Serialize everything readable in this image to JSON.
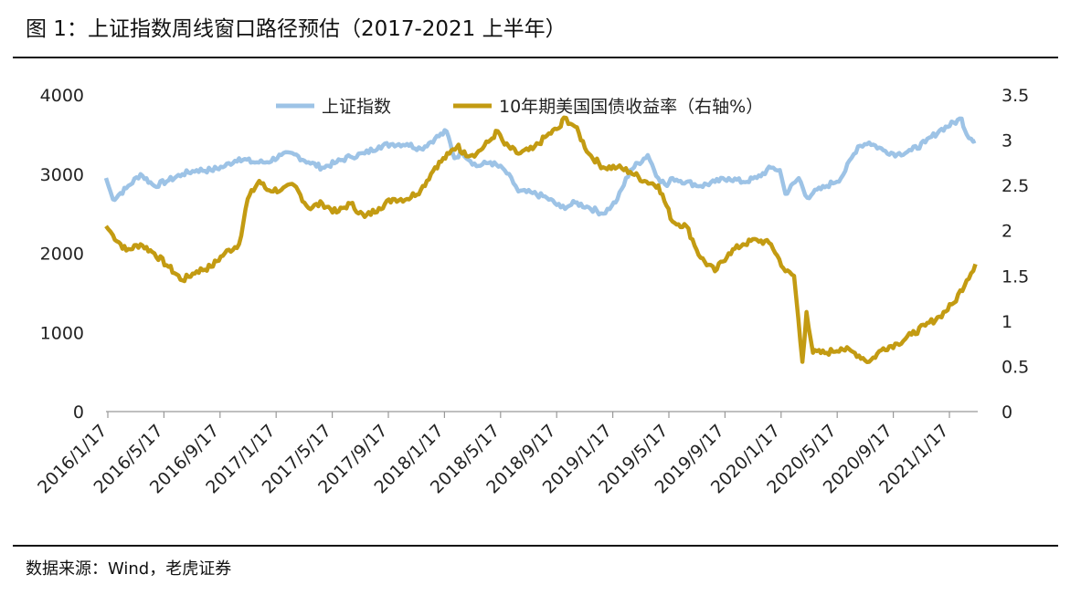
{
  "title": "图 1：上证指数周线窗口路径预估（2017-2021 上半年）",
  "source": "数据来源：Wind，老虎证券",
  "chart_data": {
    "type": "line",
    "legend": {
      "placement": "top-center",
      "entries": [
        "上证指数",
        "10年期美国国债收益率（右轴%）"
      ]
    },
    "grid": false,
    "x_tick_labels": [
      "2016/1/17",
      "2016/5/17",
      "2016/9/17",
      "2017/1/17",
      "2017/5/17",
      "2017/9/17",
      "2018/1/17",
      "2018/5/17",
      "2018/9/17",
      "2019/1/17",
      "2019/5/17",
      "2019/9/17",
      "2020/1/17",
      "2020/5/17",
      "2020/9/17",
      "2021/1/17"
    ],
    "y_left": {
      "ticks": [
        "0",
        "1000",
        "2000",
        "3000",
        "4000"
      ],
      "range": [
        0,
        4000
      ]
    },
    "y_right": {
      "ticks": [
        "0",
        "0.5",
        "1",
        "1.5",
        "2",
        "2.5",
        "3",
        "3.5"
      ],
      "range": [
        0,
        3.5
      ]
    },
    "colors": {
      "sse": "#9dc3e6",
      "ust": "#c39b12"
    },
    "series": [
      {
        "name": "上证指数",
        "axis": "left",
        "x": [
          "2016-01-17",
          "2016-02-01",
          "2016-03-01",
          "2016-04-01",
          "2016-05-01",
          "2016-06-01",
          "2016-07-01",
          "2016-08-01",
          "2016-09-01",
          "2016-10-01",
          "2016-11-01",
          "2016-12-01",
          "2017-01-01",
          "2017-02-01",
          "2017-03-01",
          "2017-04-01",
          "2017-05-01",
          "2017-06-01",
          "2017-07-01",
          "2017-08-01",
          "2017-09-01",
          "2017-10-01",
          "2017-11-01",
          "2017-12-01",
          "2018-01-01",
          "2018-01-26",
          "2018-02-12",
          "2018-03-01",
          "2018-04-01",
          "2018-05-01",
          "2018-06-01",
          "2018-06-25",
          "2018-07-01",
          "2018-08-01",
          "2018-09-01",
          "2018-10-01",
          "2018-10-20",
          "2018-11-01",
          "2018-12-01",
          "2019-01-01",
          "2019-01-20",
          "2019-02-01",
          "2019-03-01",
          "2019-04-08",
          "2019-05-01",
          "2019-05-20",
          "2019-06-01",
          "2019-07-01",
          "2019-08-01",
          "2019-09-01",
          "2019-10-01",
          "2019-11-01",
          "2019-12-01",
          "2020-01-01",
          "2020-01-20",
          "2020-02-01",
          "2020-03-01",
          "2020-03-20",
          "2020-04-01",
          "2020-05-01",
          "2020-06-01",
          "2020-07-08",
          "2020-08-01",
          "2020-09-01",
          "2020-10-01",
          "2020-11-01",
          "2020-12-01",
          "2021-01-01",
          "2021-02-18",
          "2021-03-01",
          "2021-03-20"
        ],
        "y": [
          2950,
          2680,
          2820,
          3000,
          2850,
          2920,
          3000,
          3050,
          3050,
          3100,
          3200,
          3150,
          3150,
          3240,
          3250,
          3150,
          3080,
          3150,
          3220,
          3260,
          3350,
          3380,
          3380,
          3320,
          3450,
          3540,
          3200,
          3280,
          3100,
          3150,
          3050,
          2850,
          2780,
          2760,
          2700,
          2580,
          2600,
          2640,
          2580,
          2500,
          2600,
          2680,
          3050,
          3240,
          2950,
          2850,
          2950,
          2900,
          2850,
          2900,
          2950,
          2900,
          2950,
          3080,
          3050,
          2750,
          2950,
          2700,
          2760,
          2850,
          2950,
          3350,
          3400,
          3300,
          3250,
          3300,
          3400,
          3550,
          3700,
          3500,
          3420
        ]
      },
      {
        "name": "10年期美国国债收益率（右轴%）",
        "axis": "right",
        "x": [
          "2016-01-17",
          "2016-02-01",
          "2016-03-01",
          "2016-04-01",
          "2016-05-01",
          "2016-06-01",
          "2016-07-01",
          "2016-08-01",
          "2016-09-01",
          "2016-10-01",
          "2016-11-01",
          "2016-11-20",
          "2016-12-15",
          "2017-01-01",
          "2017-02-01",
          "2017-03-01",
          "2017-04-01",
          "2017-05-01",
          "2017-06-01",
          "2017-07-01",
          "2017-08-01",
          "2017-09-01",
          "2017-10-01",
          "2017-11-01",
          "2017-12-01",
          "2018-01-01",
          "2018-02-01",
          "2018-02-21",
          "2018-03-01",
          "2018-04-01",
          "2018-05-01",
          "2018-05-17",
          "2018-06-01",
          "2018-07-01",
          "2018-08-01",
          "2018-09-01",
          "2018-10-01",
          "2018-10-08",
          "2018-11-01",
          "2018-12-01",
          "2019-01-01",
          "2019-02-01",
          "2019-03-01",
          "2019-04-01",
          "2019-05-01",
          "2019-06-01",
          "2019-07-01",
          "2019-08-01",
          "2019-09-01",
          "2019-10-01",
          "2019-11-01",
          "2019-12-01",
          "2020-01-01",
          "2020-02-01",
          "2020-02-20",
          "2020-03-09",
          "2020-03-18",
          "2020-04-01",
          "2020-05-01",
          "2020-06-01",
          "2020-07-01",
          "2020-08-01",
          "2020-09-01",
          "2020-10-01",
          "2020-11-01",
          "2020-12-01",
          "2021-01-01",
          "2021-02-01",
          "2021-03-01",
          "2021-03-20"
        ],
        "y": [
          2.05,
          1.95,
          1.78,
          1.85,
          1.75,
          1.6,
          1.45,
          1.55,
          1.6,
          1.75,
          1.85,
          2.35,
          2.55,
          2.45,
          2.45,
          2.5,
          2.25,
          2.3,
          2.2,
          2.3,
          2.15,
          2.25,
          2.35,
          2.35,
          2.45,
          2.7,
          2.85,
          2.95,
          2.85,
          2.85,
          3.0,
          3.1,
          2.95,
          2.85,
          2.9,
          3.05,
          3.15,
          3.25,
          3.15,
          2.85,
          2.7,
          2.7,
          2.65,
          2.55,
          2.5,
          2.1,
          2.05,
          1.7,
          1.55,
          1.75,
          1.85,
          1.9,
          1.85,
          1.55,
          1.5,
          0.55,
          1.1,
          0.65,
          0.65,
          0.7,
          0.65,
          0.55,
          0.7,
          0.75,
          0.85,
          0.95,
          1.05,
          1.2,
          1.45,
          1.63
        ]
      }
    ]
  }
}
